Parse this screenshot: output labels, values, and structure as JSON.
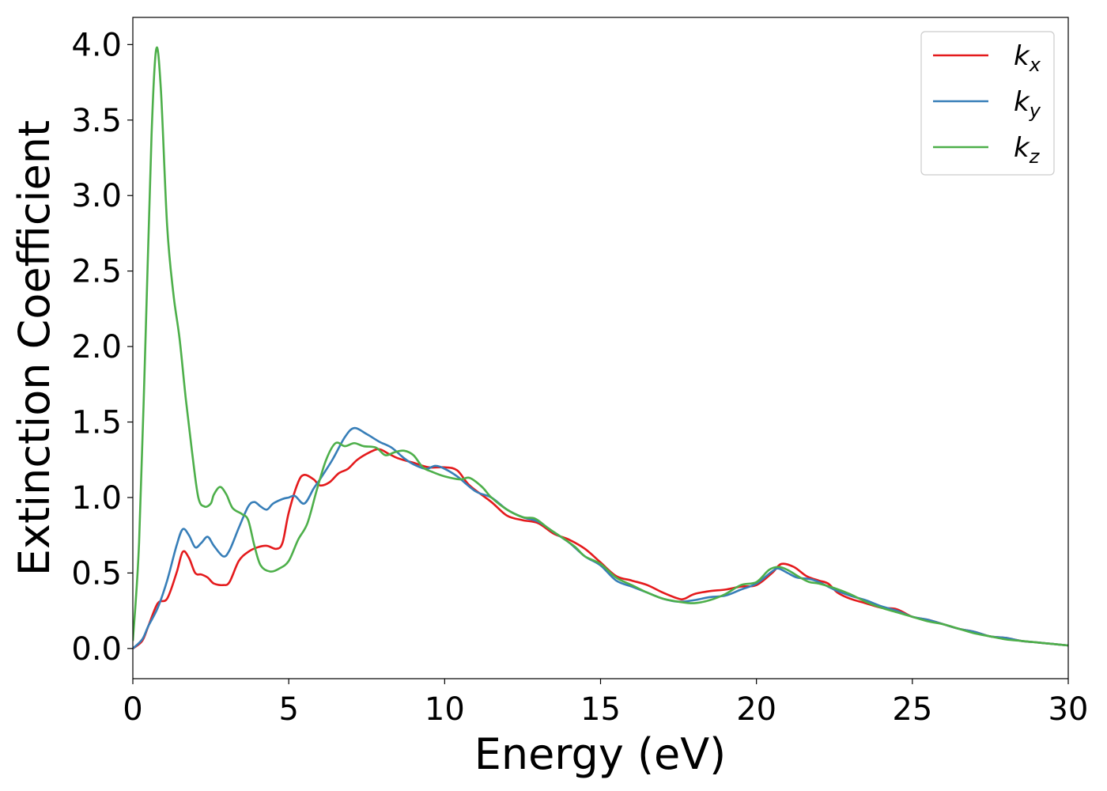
{
  "chart_data": {
    "type": "line",
    "xlabel": "Energy (eV)",
    "ylabel": "Extinction Coefficient",
    "xlim": [
      0,
      30
    ],
    "ylim": [
      -0.2,
      4.18
    ],
    "xticks": [
      0,
      5,
      10,
      15,
      20,
      25,
      30
    ],
    "xtick_labels": [
      "0",
      "5",
      "10",
      "15",
      "20",
      "25",
      "30"
    ],
    "yticks": [
      0.0,
      0.5,
      1.0,
      1.5,
      2.0,
      2.5,
      3.0,
      3.5,
      4.0
    ],
    "ytick_labels": [
      "0.0",
      "0.5",
      "1.0",
      "1.5",
      "2.0",
      "2.5",
      "3.0",
      "3.5",
      "4.0"
    ],
    "grid": false,
    "legend_position": "top-right",
    "series": [
      {
        "name": "k",
        "subscript": "x",
        "color": "#e41a1c",
        "points": [
          [
            0,
            0.0
          ],
          [
            0.3,
            0.05
          ],
          [
            0.5,
            0.15
          ],
          [
            0.8,
            0.3
          ],
          [
            1.1,
            0.33
          ],
          [
            1.4,
            0.5
          ],
          [
            1.6,
            0.64
          ],
          [
            1.8,
            0.6
          ],
          [
            2.0,
            0.5
          ],
          [
            2.2,
            0.49
          ],
          [
            2.4,
            0.47
          ],
          [
            2.6,
            0.43
          ],
          [
            2.9,
            0.42
          ],
          [
            3.1,
            0.44
          ],
          [
            3.4,
            0.58
          ],
          [
            3.7,
            0.64
          ],
          [
            4.0,
            0.67
          ],
          [
            4.3,
            0.68
          ],
          [
            4.6,
            0.66
          ],
          [
            4.8,
            0.7
          ],
          [
            5.0,
            0.9
          ],
          [
            5.3,
            1.1
          ],
          [
            5.5,
            1.15
          ],
          [
            5.8,
            1.12
          ],
          [
            6.0,
            1.08
          ],
          [
            6.3,
            1.1
          ],
          [
            6.6,
            1.16
          ],
          [
            6.9,
            1.19
          ],
          [
            7.2,
            1.25
          ],
          [
            7.6,
            1.3
          ],
          [
            7.9,
            1.32
          ],
          [
            8.2,
            1.29
          ],
          [
            8.5,
            1.26
          ],
          [
            9.0,
            1.23
          ],
          [
            9.5,
            1.2
          ],
          [
            10.0,
            1.2
          ],
          [
            10.4,
            1.18
          ],
          [
            10.8,
            1.08
          ],
          [
            11.5,
            0.97
          ],
          [
            12.0,
            0.88
          ],
          [
            12.5,
            0.85
          ],
          [
            13.0,
            0.83
          ],
          [
            13.5,
            0.76
          ],
          [
            14.0,
            0.72
          ],
          [
            14.5,
            0.66
          ],
          [
            15.0,
            0.57
          ],
          [
            15.5,
            0.48
          ],
          [
            16.0,
            0.45
          ],
          [
            16.5,
            0.42
          ],
          [
            17.0,
            0.37
          ],
          [
            17.5,
            0.33
          ],
          [
            17.7,
            0.33
          ],
          [
            18.0,
            0.36
          ],
          [
            18.5,
            0.38
          ],
          [
            19.0,
            0.39
          ],
          [
            19.5,
            0.41
          ],
          [
            20.0,
            0.42
          ],
          [
            20.5,
            0.5
          ],
          [
            20.8,
            0.56
          ],
          [
            21.2,
            0.54
          ],
          [
            21.6,
            0.48
          ],
          [
            22.0,
            0.45
          ],
          [
            22.3,
            0.43
          ],
          [
            22.6,
            0.37
          ],
          [
            23.0,
            0.33
          ],
          [
            23.5,
            0.3
          ],
          [
            24.0,
            0.27
          ],
          [
            24.5,
            0.26
          ],
          [
            25.0,
            0.21
          ],
          [
            25.5,
            0.19
          ],
          [
            26.0,
            0.16
          ],
          [
            26.5,
            0.13
          ],
          [
            27.0,
            0.11
          ],
          [
            27.5,
            0.08
          ],
          [
            28.0,
            0.07
          ],
          [
            28.5,
            0.05
          ],
          [
            29.0,
            0.04
          ],
          [
            29.5,
            0.03
          ],
          [
            30.0,
            0.02
          ]
        ]
      },
      {
        "name": "k",
        "subscript": "y",
        "color": "#377eb8",
        "points": [
          [
            0,
            0.0
          ],
          [
            0.3,
            0.06
          ],
          [
            0.5,
            0.15
          ],
          [
            0.8,
            0.27
          ],
          [
            1.1,
            0.45
          ],
          [
            1.4,
            0.68
          ],
          [
            1.6,
            0.79
          ],
          [
            1.8,
            0.75
          ],
          [
            2.0,
            0.67
          ],
          [
            2.2,
            0.7
          ],
          [
            2.4,
            0.74
          ],
          [
            2.6,
            0.68
          ],
          [
            2.9,
            0.61
          ],
          [
            3.1,
            0.65
          ],
          [
            3.4,
            0.8
          ],
          [
            3.7,
            0.94
          ],
          [
            3.9,
            0.97
          ],
          [
            4.1,
            0.94
          ],
          [
            4.3,
            0.92
          ],
          [
            4.5,
            0.96
          ],
          [
            4.8,
            0.99
          ],
          [
            5.0,
            1.0
          ],
          [
            5.2,
            1.01
          ],
          [
            5.5,
            0.96
          ],
          [
            5.8,
            1.06
          ],
          [
            6.0,
            1.12
          ],
          [
            6.4,
            1.25
          ],
          [
            6.8,
            1.4
          ],
          [
            7.1,
            1.46
          ],
          [
            7.5,
            1.42
          ],
          [
            7.9,
            1.37
          ],
          [
            8.3,
            1.33
          ],
          [
            8.7,
            1.26
          ],
          [
            9.0,
            1.22
          ],
          [
            9.4,
            1.19
          ],
          [
            9.7,
            1.21
          ],
          [
            10.0,
            1.19
          ],
          [
            10.4,
            1.14
          ],
          [
            11.0,
            1.04
          ],
          [
            11.5,
            1.0
          ],
          [
            12.0,
            0.92
          ],
          [
            12.5,
            0.87
          ],
          [
            13.0,
            0.84
          ],
          [
            13.5,
            0.77
          ],
          [
            14.0,
            0.7
          ],
          [
            14.5,
            0.61
          ],
          [
            15.0,
            0.55
          ],
          [
            15.5,
            0.45
          ],
          [
            16.0,
            0.41
          ],
          [
            16.5,
            0.37
          ],
          [
            17.0,
            0.33
          ],
          [
            17.5,
            0.31
          ],
          [
            18.0,
            0.32
          ],
          [
            18.5,
            0.34
          ],
          [
            19.0,
            0.35
          ],
          [
            19.5,
            0.39
          ],
          [
            20.0,
            0.43
          ],
          [
            20.5,
            0.51
          ],
          [
            20.7,
            0.53
          ],
          [
            21.0,
            0.5
          ],
          [
            21.3,
            0.47
          ],
          [
            21.7,
            0.46
          ],
          [
            22.0,
            0.44
          ],
          [
            22.5,
            0.39
          ],
          [
            23.0,
            0.35
          ],
          [
            23.5,
            0.32
          ],
          [
            24.0,
            0.28
          ],
          [
            24.5,
            0.25
          ],
          [
            25.0,
            0.21
          ],
          [
            25.5,
            0.19
          ],
          [
            26.0,
            0.16
          ],
          [
            26.5,
            0.13
          ],
          [
            27.0,
            0.11
          ],
          [
            27.5,
            0.08
          ],
          [
            28.0,
            0.07
          ],
          [
            28.5,
            0.05
          ],
          [
            29.0,
            0.04
          ],
          [
            29.5,
            0.03
          ],
          [
            30.0,
            0.02
          ]
        ]
      },
      {
        "name": "k",
        "subscript": "z",
        "color": "#4daf4a",
        "points": [
          [
            0,
            0.05
          ],
          [
            0.2,
            0.7
          ],
          [
            0.4,
            2.0
          ],
          [
            0.6,
            3.4
          ],
          [
            0.75,
            3.97
          ],
          [
            0.9,
            3.7
          ],
          [
            1.1,
            2.8
          ],
          [
            1.3,
            2.35
          ],
          [
            1.5,
            2.05
          ],
          [
            1.7,
            1.65
          ],
          [
            1.9,
            1.3
          ],
          [
            2.1,
            1.0
          ],
          [
            2.3,
            0.94
          ],
          [
            2.5,
            0.96
          ],
          [
            2.6,
            1.02
          ],
          [
            2.8,
            1.07
          ],
          [
            3.0,
            1.02
          ],
          [
            3.2,
            0.93
          ],
          [
            3.5,
            0.89
          ],
          [
            3.7,
            0.85
          ],
          [
            3.9,
            0.68
          ],
          [
            4.1,
            0.55
          ],
          [
            4.4,
            0.51
          ],
          [
            4.7,
            0.53
          ],
          [
            5.0,
            0.58
          ],
          [
            5.3,
            0.72
          ],
          [
            5.6,
            0.83
          ],
          [
            5.9,
            1.05
          ],
          [
            6.2,
            1.25
          ],
          [
            6.5,
            1.36
          ],
          [
            6.8,
            1.34
          ],
          [
            7.1,
            1.36
          ],
          [
            7.4,
            1.34
          ],
          [
            7.8,
            1.33
          ],
          [
            8.1,
            1.28
          ],
          [
            8.4,
            1.3
          ],
          [
            8.7,
            1.31
          ],
          [
            9.0,
            1.28
          ],
          [
            9.3,
            1.2
          ],
          [
            9.6,
            1.17
          ],
          [
            10.0,
            1.14
          ],
          [
            10.5,
            1.12
          ],
          [
            10.8,
            1.13
          ],
          [
            11.2,
            1.07
          ],
          [
            11.5,
            1.0
          ],
          [
            12.0,
            0.92
          ],
          [
            12.5,
            0.87
          ],
          [
            12.9,
            0.86
          ],
          [
            13.3,
            0.8
          ],
          [
            13.8,
            0.73
          ],
          [
            14.2,
            0.67
          ],
          [
            14.5,
            0.61
          ],
          [
            15.0,
            0.56
          ],
          [
            15.5,
            0.47
          ],
          [
            16.0,
            0.42
          ],
          [
            16.5,
            0.37
          ],
          [
            17.0,
            0.33
          ],
          [
            17.5,
            0.31
          ],
          [
            18.0,
            0.3
          ],
          [
            18.5,
            0.32
          ],
          [
            19.0,
            0.36
          ],
          [
            19.5,
            0.42
          ],
          [
            20.0,
            0.44
          ],
          [
            20.4,
            0.52
          ],
          [
            20.7,
            0.54
          ],
          [
            21.0,
            0.52
          ],
          [
            21.4,
            0.47
          ],
          [
            21.7,
            0.44
          ],
          [
            22.0,
            0.43
          ],
          [
            22.5,
            0.4
          ],
          [
            23.0,
            0.36
          ],
          [
            23.5,
            0.31
          ],
          [
            24.0,
            0.27
          ],
          [
            24.5,
            0.24
          ],
          [
            25.0,
            0.21
          ],
          [
            25.5,
            0.18
          ],
          [
            26.0,
            0.16
          ],
          [
            26.5,
            0.13
          ],
          [
            27.0,
            0.1
          ],
          [
            27.5,
            0.08
          ],
          [
            28.0,
            0.06
          ],
          [
            28.5,
            0.05
          ],
          [
            29.0,
            0.04
          ],
          [
            29.5,
            0.03
          ],
          [
            30.0,
            0.02
          ]
        ]
      }
    ]
  }
}
